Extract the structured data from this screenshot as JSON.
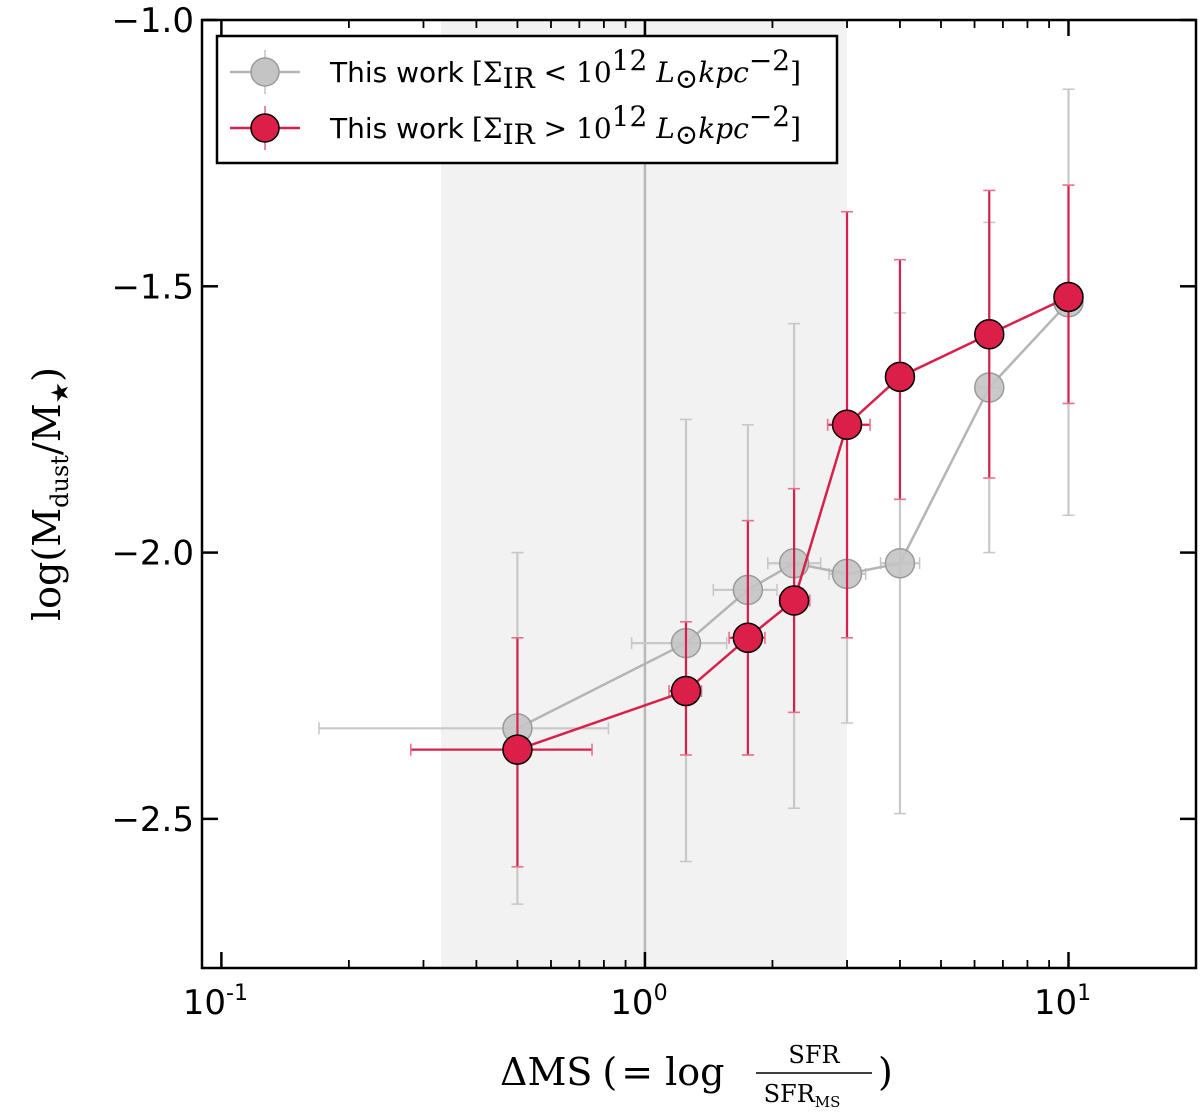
{
  "chart_data": {
    "type": "scatter",
    "title": "",
    "xscale": "log",
    "xlim": [
      0.09,
      20
    ],
    "ylim": [
      -2.78,
      -1.0
    ],
    "xlabel": {
      "main": "ΔMS",
      "paren_open": "(",
      "eq": "= log",
      "num": "SFR",
      "den": "SFR",
      "den_sub": "MS",
      "paren_close": ")"
    },
    "ylabel": {
      "prefix": "log(M",
      "sub1": "dust",
      "mid": "/M",
      "sub2": "★",
      "suffix": ")"
    },
    "xticks": [
      {
        "value": 0.1,
        "base": "10",
        "exp": "-1"
      },
      {
        "value": 1,
        "base": "10",
        "exp": "0"
      },
      {
        "value": 10,
        "base": "10",
        "exp": "1"
      }
    ],
    "yticks": [
      {
        "value": -1.0,
        "label": "−1.0"
      },
      {
        "value": -1.5,
        "label": "−1.5"
      },
      {
        "value": -2.0,
        "label": "−2.0"
      },
      {
        "value": -2.5,
        "label": "−2.5"
      }
    ],
    "shaded_region": {
      "x": [
        0.33,
        3.0
      ],
      "color": "#f2f2f2"
    },
    "vline": {
      "x": 1.0,
      "color": "#b8b8b8"
    },
    "series": [
      {
        "name": "low",
        "color": "#b5b5b5",
        "marker_fill": "#c4c4c4",
        "points": [
          {
            "x": 0.5,
            "y": -2.33,
            "xlo": 0.17,
            "xhi": 0.82,
            "ylo": -2.66,
            "yhi": -2.0
          },
          {
            "x": 1.25,
            "y": -2.17,
            "xlo": 0.93,
            "xhi": 1.56,
            "ylo": -2.58,
            "yhi": -1.75
          },
          {
            "x": 1.75,
            "y": -2.07,
            "xlo": 1.45,
            "xhi": 2.05,
            "ylo": -2.38,
            "yhi": -1.76
          },
          {
            "x": 2.25,
            "y": -2.02,
            "xlo": 1.95,
            "xhi": 2.6,
            "ylo": -2.48,
            "yhi": -1.57
          },
          {
            "x": 3.0,
            "y": -2.04,
            "xlo": 2.72,
            "xhi": 3.32,
            "ylo": -2.32,
            "yhi": -1.76
          },
          {
            "x": 4.0,
            "y": -2.02,
            "xlo": 3.6,
            "xhi": 4.45,
            "ylo": -2.49,
            "yhi": -1.55
          },
          {
            "x": 6.5,
            "y": -1.69,
            "xlo": 6.1,
            "xhi": 6.9,
            "ylo": -2.0,
            "yhi": -1.38
          },
          {
            "x": 10.0,
            "y": -1.53,
            "xlo": 9.6,
            "xhi": 10.4,
            "ylo": -1.93,
            "yhi": -1.13
          }
        ]
      },
      {
        "name": "high",
        "color": "#d7214b",
        "marker_fill": "#dc1f48",
        "points": [
          {
            "x": 0.5,
            "y": -2.37,
            "xlo": 0.28,
            "xhi": 0.75,
            "ylo": -2.59,
            "yhi": -2.16
          },
          {
            "x": 1.25,
            "y": -2.26,
            "xlo": 1.14,
            "xhi": 1.36,
            "ylo": -2.38,
            "yhi": -2.13
          },
          {
            "x": 1.75,
            "y": -2.16,
            "xlo": 1.58,
            "xhi": 1.92,
            "ylo": -2.38,
            "yhi": -1.94
          },
          {
            "x": 2.25,
            "y": -2.09,
            "xlo": 2.08,
            "xhi": 2.45,
            "ylo": -2.3,
            "yhi": -1.88
          },
          {
            "x": 3.0,
            "y": -1.76,
            "xlo": 2.7,
            "xhi": 3.4,
            "ylo": -2.16,
            "yhi": -1.36
          },
          {
            "x": 4.0,
            "y": -1.67,
            "xlo": 3.8,
            "xhi": 4.2,
            "ylo": -1.9,
            "yhi": -1.45
          },
          {
            "x": 6.5,
            "y": -1.59,
            "xlo": 6.3,
            "xhi": 6.7,
            "ylo": -1.86,
            "yhi": -1.32
          },
          {
            "x": 10.0,
            "y": -1.52,
            "xlo": 9.7,
            "xhi": 10.3,
            "ylo": -1.72,
            "yhi": -1.31
          }
        ]
      }
    ],
    "legend": {
      "position": "top-left",
      "entries": [
        {
          "series": "low",
          "text": "This work",
          "math": "[Σ",
          "sub": "IR",
          "op": " < 10",
          "sup": "12",
          "unit": " L",
          "usub": "⊙",
          "tail": "kpc",
          "tsup": "−2",
          "close": "]"
        },
        {
          "series": "high",
          "text": "This work",
          "math": "[Σ",
          "sub": "IR",
          "op": " > 10",
          "sup": "12",
          "unit": " L",
          "usub": "⊙",
          "tail": "kpc",
          "tsup": "−2",
          "close": "]"
        }
      ]
    }
  }
}
